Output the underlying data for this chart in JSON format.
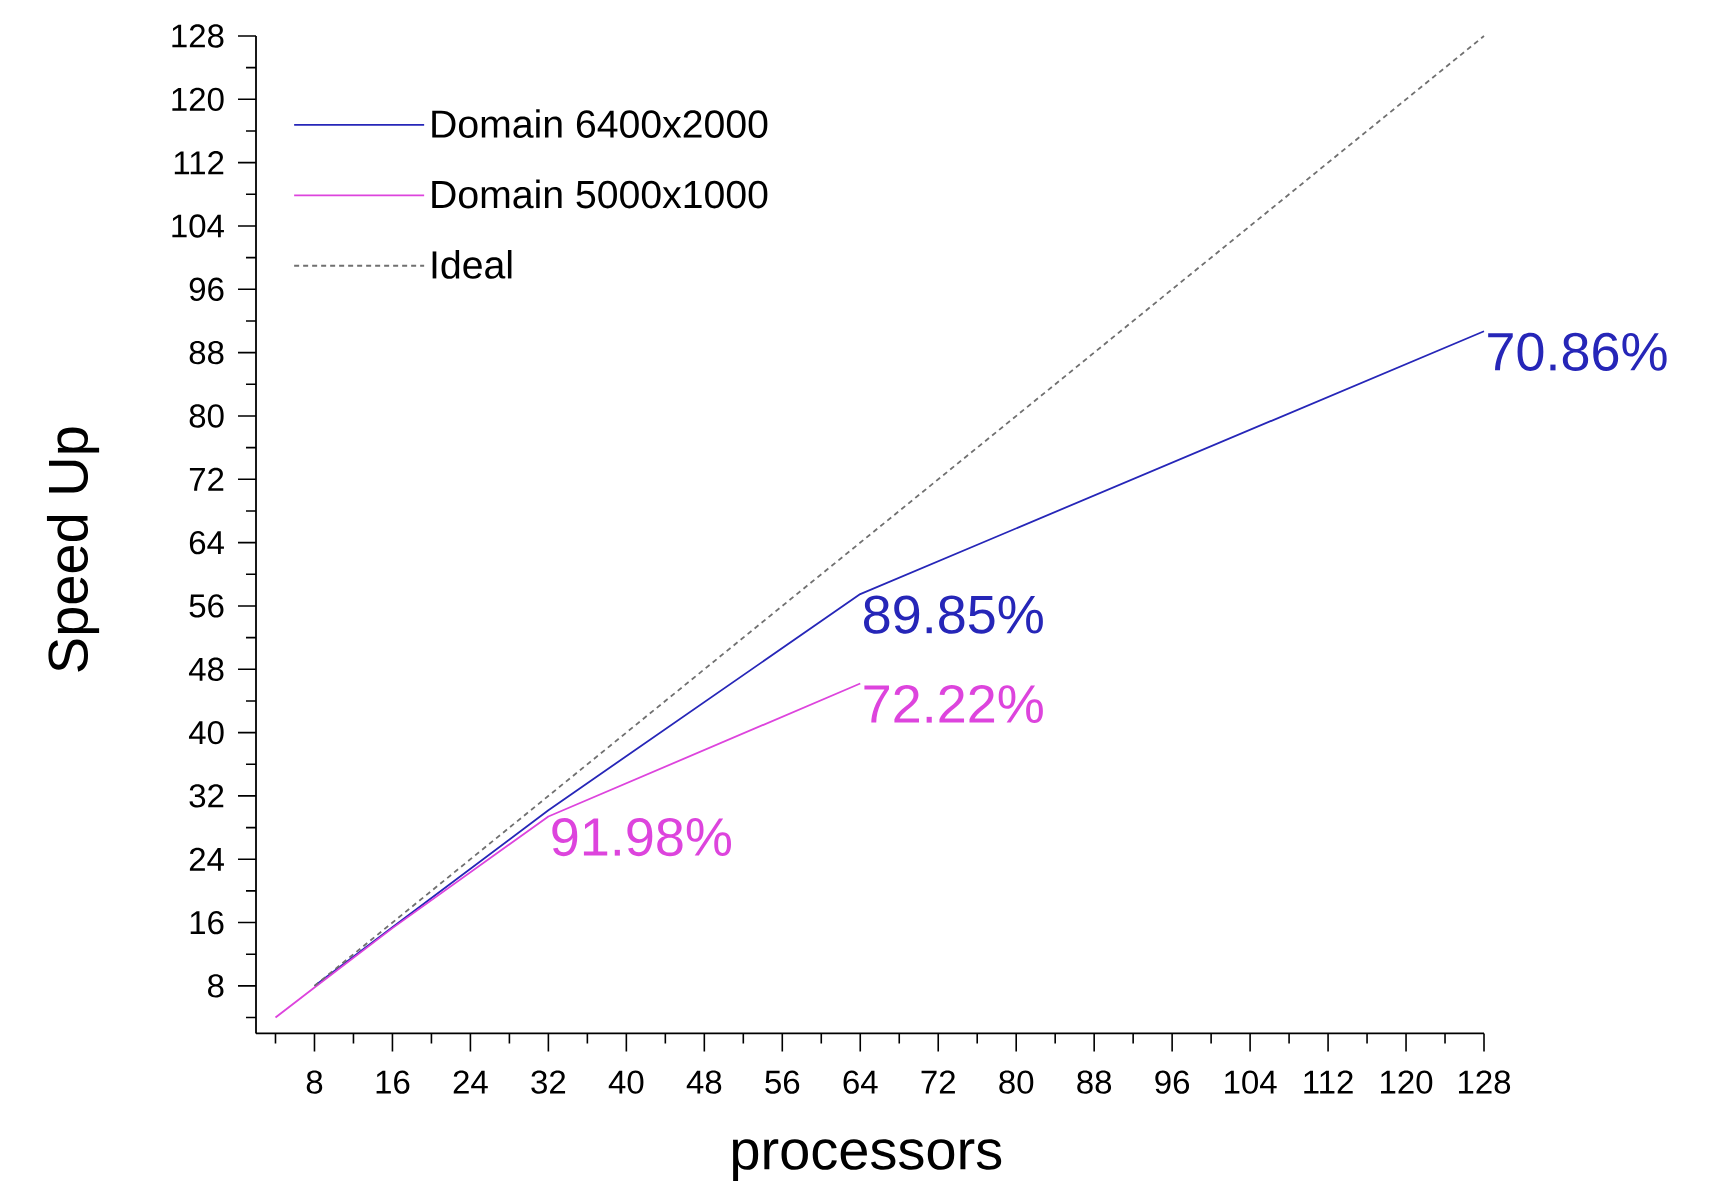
{
  "chart_data": {
    "type": "line",
    "xlabel": "processors",
    "ylabel": "Speed Up",
    "xlim": [
      2,
      128
    ],
    "ylim": [
      2,
      128
    ],
    "xticks": [
      8,
      16,
      24,
      32,
      40,
      48,
      56,
      64,
      72,
      80,
      88,
      96,
      104,
      112,
      120,
      128
    ],
    "yticks": [
      8,
      16,
      24,
      32,
      40,
      48,
      56,
      64,
      72,
      80,
      88,
      96,
      104,
      112,
      120,
      128
    ],
    "legend": "top left",
    "series": [
      {
        "name": "Domain 6400x2000",
        "color": "#2626b8",
        "x": [
          8,
          16,
          32,
          64,
          128
        ],
        "values": [
          8,
          15.4,
          30.2,
          57.5,
          90.7
        ]
      },
      {
        "name": "Domain 5000x1000",
        "color": "#dd44dd",
        "x": [
          4,
          8,
          16,
          32,
          64
        ],
        "values": [
          4,
          7.8,
          15.3,
          29.4,
          46.2
        ]
      },
      {
        "name": "Ideal",
        "color": "#707070",
        "x": [
          8,
          128
        ],
        "values": [
          8,
          128
        ],
        "line_style": "dashed"
      }
    ],
    "annotations": [
      {
        "text": "70.86%",
        "x": 128,
        "y": 90.7
      },
      {
        "text": "89.85%",
        "x": 64,
        "y": 57.5
      },
      {
        "text": "72.22%",
        "x": 64,
        "y": 46.2
      },
      {
        "text": "91.98%",
        "x": 32,
        "y": 29.4
      }
    ]
  }
}
